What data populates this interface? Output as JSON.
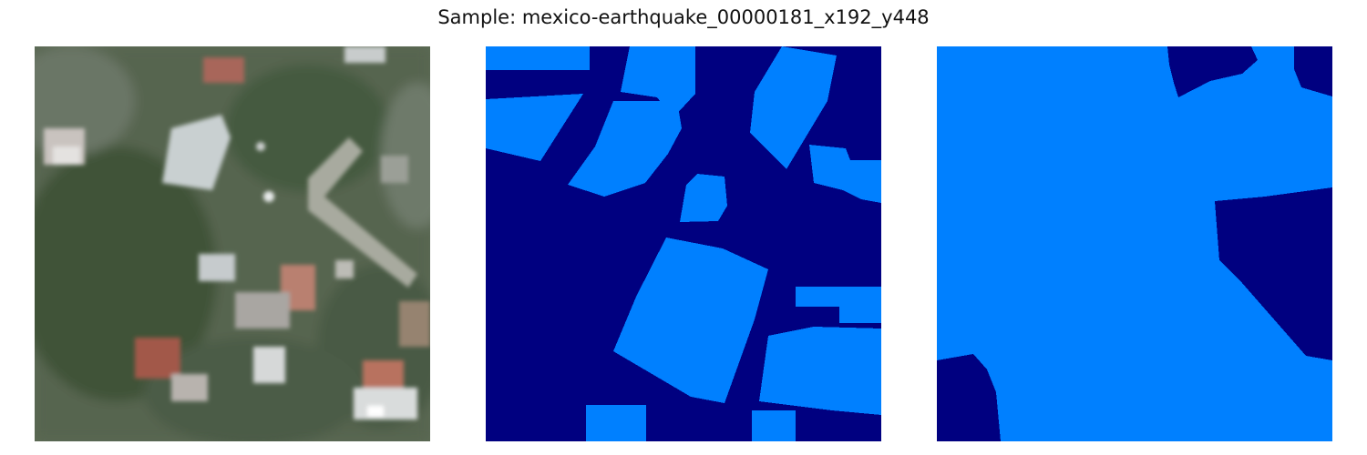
{
  "figure": {
    "title": "Sample: mexico-earthquake_00000181_x192_y448"
  },
  "panels": [
    {
      "id": "image",
      "kind": "aerial-photo"
    },
    {
      "id": "mask-a",
      "kind": "segmentation-mask",
      "colors": {
        "background": "#000080",
        "building": "#0080ff"
      }
    },
    {
      "id": "mask-b",
      "kind": "segmentation-mask",
      "colors": {
        "background": "#000080",
        "building": "#0080ff"
      }
    }
  ]
}
